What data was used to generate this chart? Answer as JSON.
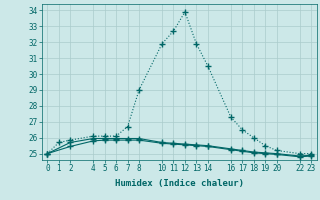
{
  "xlabel": "Humidex (Indice chaleur)",
  "background_color": "#cce8e8",
  "grid_color": "#aacccc",
  "line_color": "#006666",
  "xlim": [
    -0.5,
    23.5
  ],
  "ylim": [
    24.6,
    34.4
  ],
  "yticks": [
    25,
    26,
    27,
    28,
    29,
    30,
    31,
    32,
    33,
    34
  ],
  "xticks": [
    0,
    1,
    2,
    4,
    5,
    6,
    7,
    8,
    10,
    11,
    12,
    13,
    14,
    16,
    17,
    18,
    19,
    20,
    22,
    23
  ],
  "series1_x": [
    0,
    1,
    2,
    4,
    5,
    6,
    7,
    8,
    10,
    11,
    12,
    13,
    14,
    16,
    17,
    18,
    19,
    20,
    22,
    23
  ],
  "series1_y": [
    25.0,
    25.7,
    25.85,
    26.1,
    26.1,
    26.1,
    26.7,
    29.0,
    31.9,
    32.7,
    33.9,
    31.9,
    30.5,
    27.3,
    26.5,
    26.0,
    25.5,
    25.2,
    25.0,
    25.0
  ],
  "series2_x": [
    0,
    2,
    4,
    5,
    6,
    7,
    8,
    10,
    11,
    12,
    13,
    14,
    16,
    17,
    18,
    19,
    20,
    22,
    23
  ],
  "series2_y": [
    25.0,
    25.7,
    25.95,
    25.95,
    25.95,
    25.95,
    25.95,
    25.7,
    25.65,
    25.6,
    25.55,
    25.5,
    25.3,
    25.2,
    25.1,
    25.05,
    25.0,
    24.85,
    24.9
  ],
  "series3_x": [
    0,
    2,
    4,
    5,
    6,
    7,
    8,
    10,
    11,
    12,
    13,
    14,
    16,
    17,
    18,
    19,
    20,
    22,
    23
  ],
  "series3_y": [
    25.0,
    25.45,
    25.8,
    25.85,
    25.85,
    25.85,
    25.85,
    25.65,
    25.6,
    25.55,
    25.5,
    25.45,
    25.25,
    25.15,
    25.05,
    25.0,
    24.95,
    24.8,
    24.85
  ],
  "marker": "+",
  "markersize": 4,
  "linewidth": 0.8,
  "fontsize_tick": 5.5,
  "fontsize_label": 6.5
}
